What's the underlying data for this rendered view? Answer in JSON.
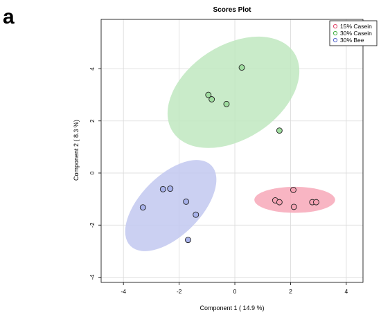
{
  "panel_label": "a",
  "chart_data": {
    "type": "scatter",
    "title": "Scores Plot",
    "xlabel": "Component 1 ( 14.9 %)",
    "ylabel": "Component 2 ( 8.3 %)",
    "xlim": [
      -4.8,
      4.6
    ],
    "ylim": [
      -4.2,
      5.9
    ],
    "x_ticks": [
      -4,
      -2,
      0,
      2,
      4
    ],
    "y_ticks": [
      -4,
      -2,
      0,
      2,
      4
    ],
    "grid": true,
    "legend_position": "top-right",
    "series": [
      {
        "name": "15% Casein",
        "color": "#e0466a",
        "fill": "#f5a3b4",
        "ellipse_fill": "#f7a8b8",
        "points": [
          {
            "x": 2.1,
            "y": -0.65
          },
          {
            "x": 1.45,
            "y": -1.05
          },
          {
            "x": 1.6,
            "y": -1.12
          },
          {
            "x": 2.78,
            "y": -1.12
          },
          {
            "x": 2.92,
            "y": -1.12
          },
          {
            "x": 2.12,
            "y": -1.3
          }
        ],
        "ellipse": {
          "cx": 2.15,
          "cy": -1.03,
          "rx": 1.45,
          "ry": 0.5,
          "angle": 0
        }
      },
      {
        "name": "30% Casein",
        "color": "#3fae3f",
        "fill": "#9fdc9f",
        "ellipse_fill": "#bfe8bf",
        "points": [
          {
            "x": 0.25,
            "y": 4.05
          },
          {
            "x": -0.95,
            "y": 3.0
          },
          {
            "x": -0.83,
            "y": 2.83
          },
          {
            "x": -0.3,
            "y": 2.65
          },
          {
            "x": 1.6,
            "y": 1.63
          }
        ],
        "ellipse": {
          "cx": -0.05,
          "cy": 3.1,
          "rx": 2.6,
          "ry": 1.8,
          "angle": -33
        }
      },
      {
        "name": "30% Bee",
        "color": "#5566cc",
        "fill": "#a7b1ea",
        "ellipse_fill": "#c2c8f0",
        "points": [
          {
            "x": -2.58,
            "y": -0.62
          },
          {
            "x": -2.32,
            "y": -0.6
          },
          {
            "x": -1.75,
            "y": -1.1
          },
          {
            "x": -1.4,
            "y": -1.6
          },
          {
            "x": -3.3,
            "y": -1.32
          },
          {
            "x": -1.68,
            "y": -2.57
          }
        ],
        "ellipse": {
          "cx": -2.3,
          "cy": -1.25,
          "rx": 2.05,
          "ry": 1.15,
          "angle": -45
        }
      }
    ]
  }
}
